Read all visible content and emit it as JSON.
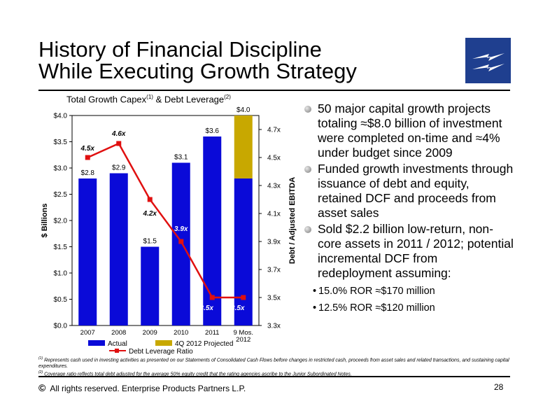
{
  "title": {
    "line1": "History of Financial Discipline",
    "line2": "While Executing Growth Strategy"
  },
  "logo": {
    "icon": "lightning-bolt-logo-icon",
    "color": "#1f3f8f"
  },
  "chart_title": {
    "text": "Total Growth Capex",
    "sup1": "(1)",
    "mid": " & Debt Leverage",
    "sup2": "(2)"
  },
  "chart_data": {
    "type": "bar",
    "categories": [
      "2007",
      "2008",
      "2009",
      "2010",
      "2011",
      "9 Mos. 2012"
    ],
    "series": [
      {
        "name": "Actual",
        "type": "bar",
        "color": "#0a0ad8",
        "values": [
          2.8,
          2.9,
          1.5,
          3.1,
          3.6,
          2.8
        ]
      },
      {
        "name": "4Q 2012 Projected",
        "type": "bar",
        "stacked": true,
        "color": "#c8a800",
        "values": [
          0,
          0,
          0,
          0,
          0,
          1.2
        ]
      },
      {
        "name": "Debt Leverage Ratio",
        "type": "line",
        "axis": "right",
        "color": "#e01010",
        "values": [
          4.5,
          4.6,
          4.2,
          3.9,
          3.5,
          3.5
        ]
      }
    ],
    "bar_labels": [
      "$2.8",
      "$2.9",
      "$1.5",
      "$3.1",
      "$3.6",
      "$4.0"
    ],
    "line_labels": [
      "4.5x",
      "4.6x",
      "4.2x",
      "3.9x",
      "3.5x",
      "3.5x"
    ],
    "ylabel": "$ Billions",
    "ylabel_right": "Debt / Adjusted EBITDA",
    "ylim": [
      0,
      4.0
    ],
    "ylim_right": [
      3.3,
      4.8
    ],
    "yticks": [
      "$0.0",
      "$0.5",
      "$1.0",
      "$1.5",
      "$2.0",
      "$2.5",
      "$3.0",
      "$3.5",
      "$4.0"
    ],
    "yticks_right": [
      "3.3x",
      "3.5x",
      "3.7x",
      "3.9x",
      "4.1x",
      "4.3x",
      "4.5x",
      "4.7x"
    ],
    "legend_position": "bottom"
  },
  "bullets": [
    "50 major capital growth projects totaling ≈$8.0 billion of investment were completed on-time and ≈4% under budget since 2009",
    "Funded growth investments through issuance of debt and equity, retained DCF and proceeds from asset sales",
    "Sold $2.2 billion low-return, non-core assets in 2011 / 2012; potential incremental DCF from redeployment assuming:"
  ],
  "sub_bullets": [
    "15.0% ROR ≈$170 million",
    "12.5% ROR ≈$120 million"
  ],
  "footnotes": [
    {
      "mark": "(1)",
      "text": " Represents cash used in investing activities as presented on our Statements of Consolidated Cash Flows before changes in restricted cash, proceeds from asset sales and related transactions, and sustaining capital expenditures."
    },
    {
      "mark": "(2)",
      "text": " Coverage ratio reflects total debt adjusted for the average 50% equity credit that the rating agencies ascribe to the Junior Subordinated Notes."
    }
  ],
  "copyright": {
    "symbol": "©",
    "text": "All rights reserved. Enterprise Products Partners L.P."
  },
  "page_number": "28"
}
